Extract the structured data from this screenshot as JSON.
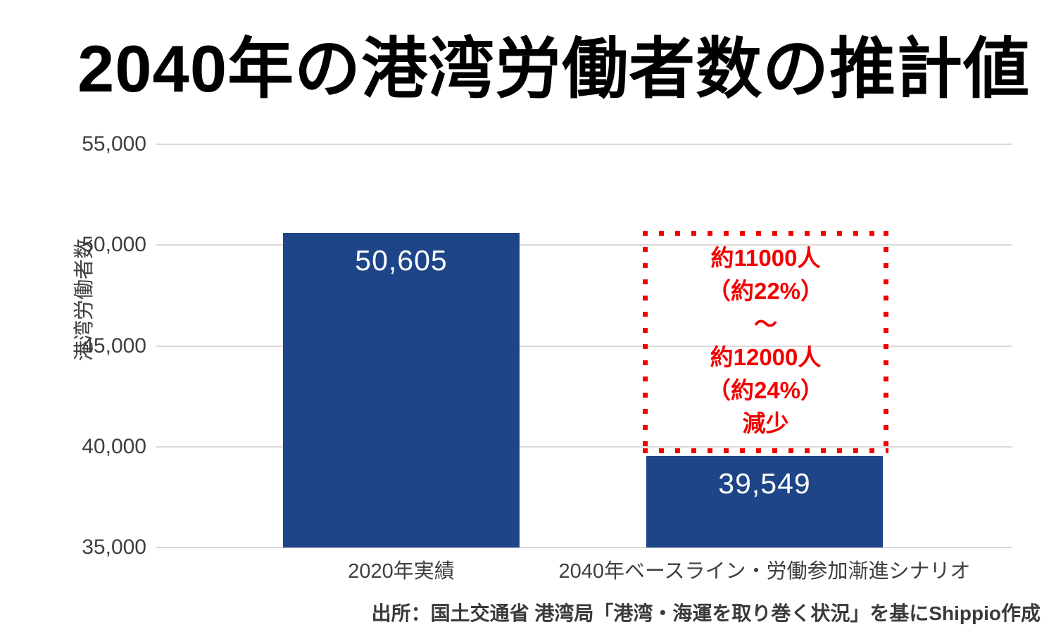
{
  "page": {
    "title": "2040年の港湾労働者数の推計値"
  },
  "chart_data": {
    "type": "bar",
    "title": "2040年の港湾労働者数の推計値",
    "xlabel": "",
    "ylabel": "港湾労働者数",
    "ylim": [
      35000,
      55000
    ],
    "grid": true,
    "legend_position": "none",
    "yticks": [
      {
        "value": 55000,
        "label": "55,000"
      },
      {
        "value": 50000,
        "label": "50,000"
      },
      {
        "value": 45000,
        "label": "45,000"
      },
      {
        "value": 40000,
        "label": "40,000"
      },
      {
        "value": 35000,
        "label": "35,000"
      }
    ],
    "categories": [
      "2020年実績",
      "2040年ベースライン・労働参加漸進シナリオ"
    ],
    "values": [
      50605,
      39549
    ],
    "value_labels": [
      "50,605",
      "39,549"
    ]
  },
  "annotation": {
    "lines": [
      "約11000人",
      "（約22%）",
      "～",
      "約12000人",
      "（約24%）",
      "減少"
    ]
  },
  "source_note": "出所：国土交通省 港湾局「港湾・海運を取り巻く状況」を基にShippio作成",
  "colors": {
    "bar": "#1e4588",
    "grid": "#d9d9d9",
    "text": "#3f3f3f",
    "title": "#000000",
    "value_label": "#ffffff",
    "accent_red": "#f20000"
  }
}
